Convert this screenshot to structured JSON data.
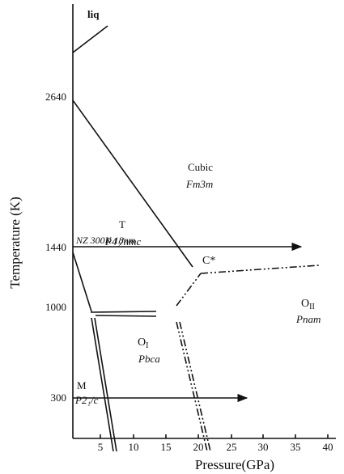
{
  "axes": {
    "y_label": "Temperature (K)",
    "x_label": "Pressure(GPa)",
    "y_ticks": [
      "2640",
      "1440",
      "1000",
      "300"
    ],
    "x_ticks": [
      "5",
      "10",
      "15",
      "20",
      "25",
      "30",
      "35",
      "40"
    ]
  },
  "regions": {
    "liq": "liq",
    "cubic": {
      "name": "Cubic",
      "group": "Fm3m"
    },
    "tetragonal": {
      "name": "T",
      "group": "P4₂/nmc"
    },
    "critical": "C*",
    "o2": {
      "name": "O",
      "sub": "II",
      "group": "Pnam"
    },
    "o1": {
      "name": "O",
      "sub": "I",
      "group": "Pbca"
    },
    "monoclinic": {
      "name": "M",
      "group": "P2₁/c"
    }
  },
  "annotations": {
    "nz": "NZ 300K 18nm"
  }
}
